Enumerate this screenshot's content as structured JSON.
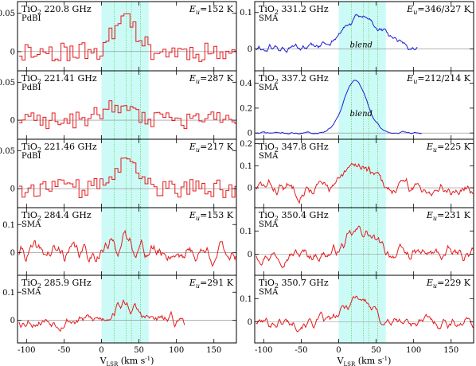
{
  "chart_data": {
    "type": "line",
    "colors": {
      "pdbi_sma": "#e41a1c",
      "blend": "#1c1cd6",
      "band": "#ccfbf7",
      "vline": "#6ad86a",
      "zero": "#888888"
    },
    "x_ticks": [
      -100,
      -50,
      0,
      50,
      100,
      150
    ],
    "x_tick_labels": [
      "-100",
      "-50",
      "0",
      "50",
      "100",
      "150"
    ],
    "xlim": [
      -112,
      180
    ],
    "band": [
      0,
      63
    ],
    "vlines": [
      17,
      33,
      40,
      52
    ],
    "xlabel_main": "V",
    "xlabel_sub": "LSR",
    "xlabel_unit": " (km s",
    "xlabel_sup": "-1",
    "xlabel_close": ")",
    "columns": [
      {
        "panels": [
          {
            "title": "TiO",
            "sub": "2",
            "freq": " 220.8 GHz",
            "inst": "PdBI",
            "eu_pre": "E",
            "eu_sub": "u",
            "eu_val": "=152 K",
            "ylim": [
              -0.025,
              0.065
            ],
            "yticks": [
              0,
              0.05
            ],
            "ytick_labels": [
              "0",
              "0.05"
            ],
            "style": "step",
            "x_end": 180,
            "amp": 0.048,
            "center": 30,
            "width": 20,
            "noise": 0.013,
            "seed": 11,
            "blend": ""
          },
          {
            "title": "TiO",
            "sub": "2",
            "freq": " 221.41 GHz",
            "inst": "PdBI",
            "eu_pre": "E",
            "eu_sub": "u",
            "eu_val": "=287 K",
            "ylim": [
              -0.025,
              0.065
            ],
            "yticks": [
              0,
              0.05
            ],
            "ytick_labels": [
              "0",
              "0.05"
            ],
            "style": "step",
            "x_end": 180,
            "amp": 0.022,
            "center": 15,
            "width": 22,
            "noise": 0.012,
            "seed": 23,
            "blend": ""
          },
          {
            "title": "TiO",
            "sub": "2",
            "freq": " 221.46 GHz",
            "inst": "PdBI",
            "eu_pre": "E",
            "eu_sub": "u",
            "eu_val": "=217 K",
            "ylim": [
              -0.025,
              0.065
            ],
            "yticks": [
              0,
              0.05
            ],
            "ytick_labels": [
              "0",
              "0.05"
            ],
            "style": "step",
            "x_end": 180,
            "amp": 0.03,
            "center": 30,
            "width": 24,
            "noise": 0.012,
            "seed": 37,
            "blend": ""
          },
          {
            "title": "TiO",
            "sub": "2",
            "freq": " 284.4 GHz",
            "inst": "SMA",
            "eu_pre": "E",
            "eu_sub": "u",
            "eu_val": "=153 K",
            "ylim": [
              -0.08,
              0.16
            ],
            "yticks": [
              0,
              0.1
            ],
            "ytick_labels": [
              "0",
              "0.1"
            ],
            "style": "line",
            "x_end": 180,
            "amp": 0.04,
            "center": 30,
            "width": 25,
            "noise": 0.035,
            "seed": 41,
            "blend": ""
          },
          {
            "title": "TiO",
            "sub": "2",
            "freq": " 285.9 GHz",
            "inst": "SMA",
            "eu_pre": "E",
            "eu_sub": "u",
            "eu_val": "=291 K",
            "ylim": [
              -0.08,
              0.16
            ],
            "yticks": [
              0,
              0.1
            ],
            "ytick_labels": [
              "0",
              "0.1"
            ],
            "style": "line",
            "x_end": 112,
            "amp": 0.055,
            "center": 30,
            "width": 22,
            "noise": 0.025,
            "seed": 53,
            "blend": ""
          }
        ]
      },
      {
        "panels": [
          {
            "title": "TiO",
            "sub": "2",
            "freq": " 331.2 GHz",
            "inst": "SMA",
            "eu_pre": "E",
            "eu_sub": "u",
            "eu_val": "=346/327 K",
            "ylim": [
              -0.06,
              0.13
            ],
            "yticks": [
              0,
              0.1
            ],
            "ytick_labels": [
              "0",
              "0.1"
            ],
            "style": "blue",
            "x_end": 105,
            "amp": 0.085,
            "center": 32,
            "width": 36,
            "noise": 0.013,
            "seed": 61,
            "blend": "blend"
          },
          {
            "title": "TiO",
            "sub": "2",
            "freq": " 337.2 GHz",
            "inst": "SMA",
            "eu_pre": "E",
            "eu_sub": "u",
            "eu_val": "=212/214 K",
            "ylim": [
              -0.05,
              0.5
            ],
            "yticks": [
              0,
              0.2,
              0.4
            ],
            "ytick_labels": [
              "0",
              "0.2",
              "0.4"
            ],
            "style": "blue",
            "x_end": 112,
            "amp": 0.42,
            "center": 22,
            "width": 22,
            "noise": 0.01,
            "seed": 71,
            "blend": "blend"
          },
          {
            "title": "TiO",
            "sub": "2",
            "freq": " 347.8 GHz",
            "inst": "SMA",
            "eu_pre": "E",
            "eu_sub": "u",
            "eu_val": "=225 K",
            "ylim": [
              -0.09,
              0.22
            ],
            "yticks": [
              0,
              0.1,
              0.2
            ],
            "ytick_labels": [
              "0",
              "0.1",
              "0.2"
            ],
            "style": "line",
            "x_end": 180,
            "amp": 0.11,
            "center": 28,
            "width": 22,
            "noise": 0.035,
            "seed": 83,
            "blend": ""
          },
          {
            "title": "TiO",
            "sub": "2",
            "freq": " 350.4 GHz",
            "inst": "SMA",
            "eu_pre": "E",
            "eu_sub": "u",
            "eu_val": "=231 K",
            "ylim": [
              -0.09,
              0.2
            ],
            "yticks": [
              0,
              0.1
            ],
            "ytick_labels": [
              "0",
              "0.1"
            ],
            "style": "line",
            "x_end": 180,
            "amp": 0.1,
            "center": 30,
            "width": 24,
            "noise": 0.03,
            "seed": 97,
            "blend": ""
          },
          {
            "title": "TiO",
            "sub": "2",
            "freq": " 350.7 GHz",
            "inst": "SMA",
            "eu_pre": "E",
            "eu_sub": "u",
            "eu_val": "=229 K",
            "ylim": [
              -0.09,
              0.2
            ],
            "yticks": [
              0,
              0.1
            ],
            "ytick_labels": [
              "0",
              "0.1"
            ],
            "style": "line",
            "x_end": 180,
            "amp": 0.11,
            "center": 26,
            "width": 22,
            "noise": 0.028,
            "seed": 101,
            "blend": ""
          }
        ]
      }
    ]
  }
}
